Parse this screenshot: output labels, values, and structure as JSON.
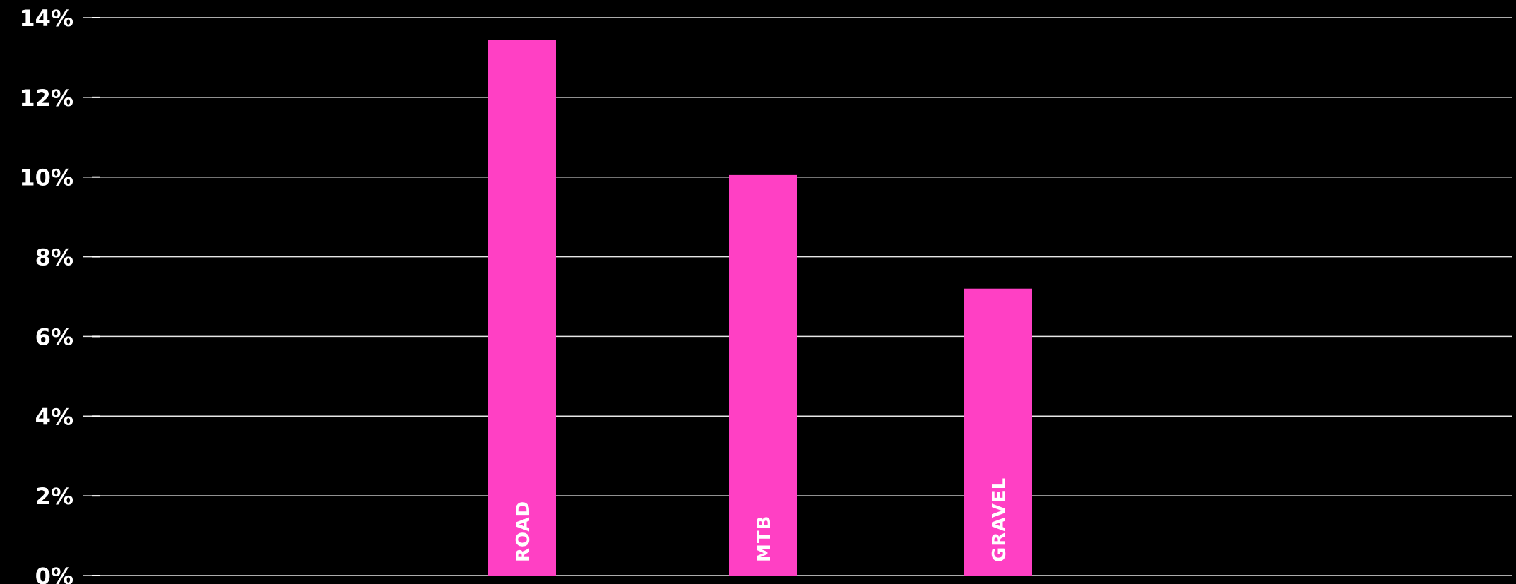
{
  "chart_data": {
    "type": "bar",
    "title": "",
    "xlabel": "",
    "ylabel": "",
    "categories": [
      "ROAD",
      "MTB",
      "GRAVEL"
    ],
    "values": [
      13.45,
      10.05,
      7.2
    ],
    "ylim": [
      0,
      14
    ],
    "yticks": [
      0,
      2,
      4,
      6,
      8,
      10,
      12,
      14
    ],
    "ytick_labels": [
      "0%",
      "2%",
      "4%",
      "6%",
      "8%",
      "10%",
      "12%",
      "14%"
    ],
    "grid": true,
    "category_labels_inside_bars": true,
    "colors": {
      "background": "#000000",
      "bar": "#ff40c4",
      "grid": "#e6e6e6",
      "text": "#ffffff"
    }
  }
}
